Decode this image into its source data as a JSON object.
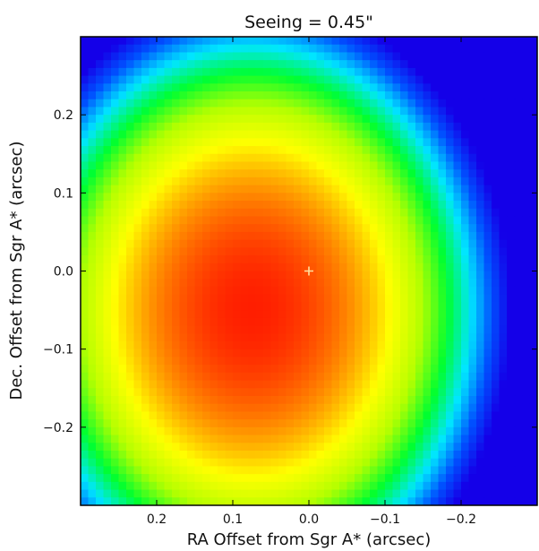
{
  "chart_data": {
    "type": "heatmap",
    "title": "Seeing = 0.45\"",
    "xlabel": "RA Offset from Sgr A* (arcsec)",
    "ylabel": "Dec. Offset from Sgr A* (arcsec)",
    "xlim": [
      0.3,
      -0.3
    ],
    "ylim": [
      -0.3,
      0.3
    ],
    "xticks": [
      {
        "value": 0.2,
        "label": "0.2"
      },
      {
        "value": 0.1,
        "label": "0.1"
      },
      {
        "value": 0.0,
        "label": "0.0"
      },
      {
        "value": -0.1,
        "label": "−0.1"
      },
      {
        "value": -0.2,
        "label": "−0.2"
      }
    ],
    "yticks": [
      {
        "value": 0.2,
        "label": "0.2"
      },
      {
        "value": 0.1,
        "label": "0.1"
      },
      {
        "value": 0.0,
        "label": "0.0"
      },
      {
        "value": -0.1,
        "label": "−0.1"
      },
      {
        "value": -0.2,
        "label": "−0.2"
      }
    ],
    "colormap": [
      "#1400e8",
      "#0050ff",
      "#00e6ff",
      "#00ff30",
      "#b4ff00",
      "#ffff00",
      "#ff8c00",
      "#ff1e00"
    ],
    "field": {
      "peak_center": {
        "x": 0.075,
        "y": -0.05
      },
      "peak_level": 1.0,
      "radial_falloff": {
        "x_sigma": 0.34,
        "y_sigma": 0.4
      }
    },
    "marker": {
      "x": 0.0,
      "y": 0.0,
      "symbol": "+",
      "color": "#ffe0a0"
    },
    "grid": false,
    "legend": "none"
  }
}
